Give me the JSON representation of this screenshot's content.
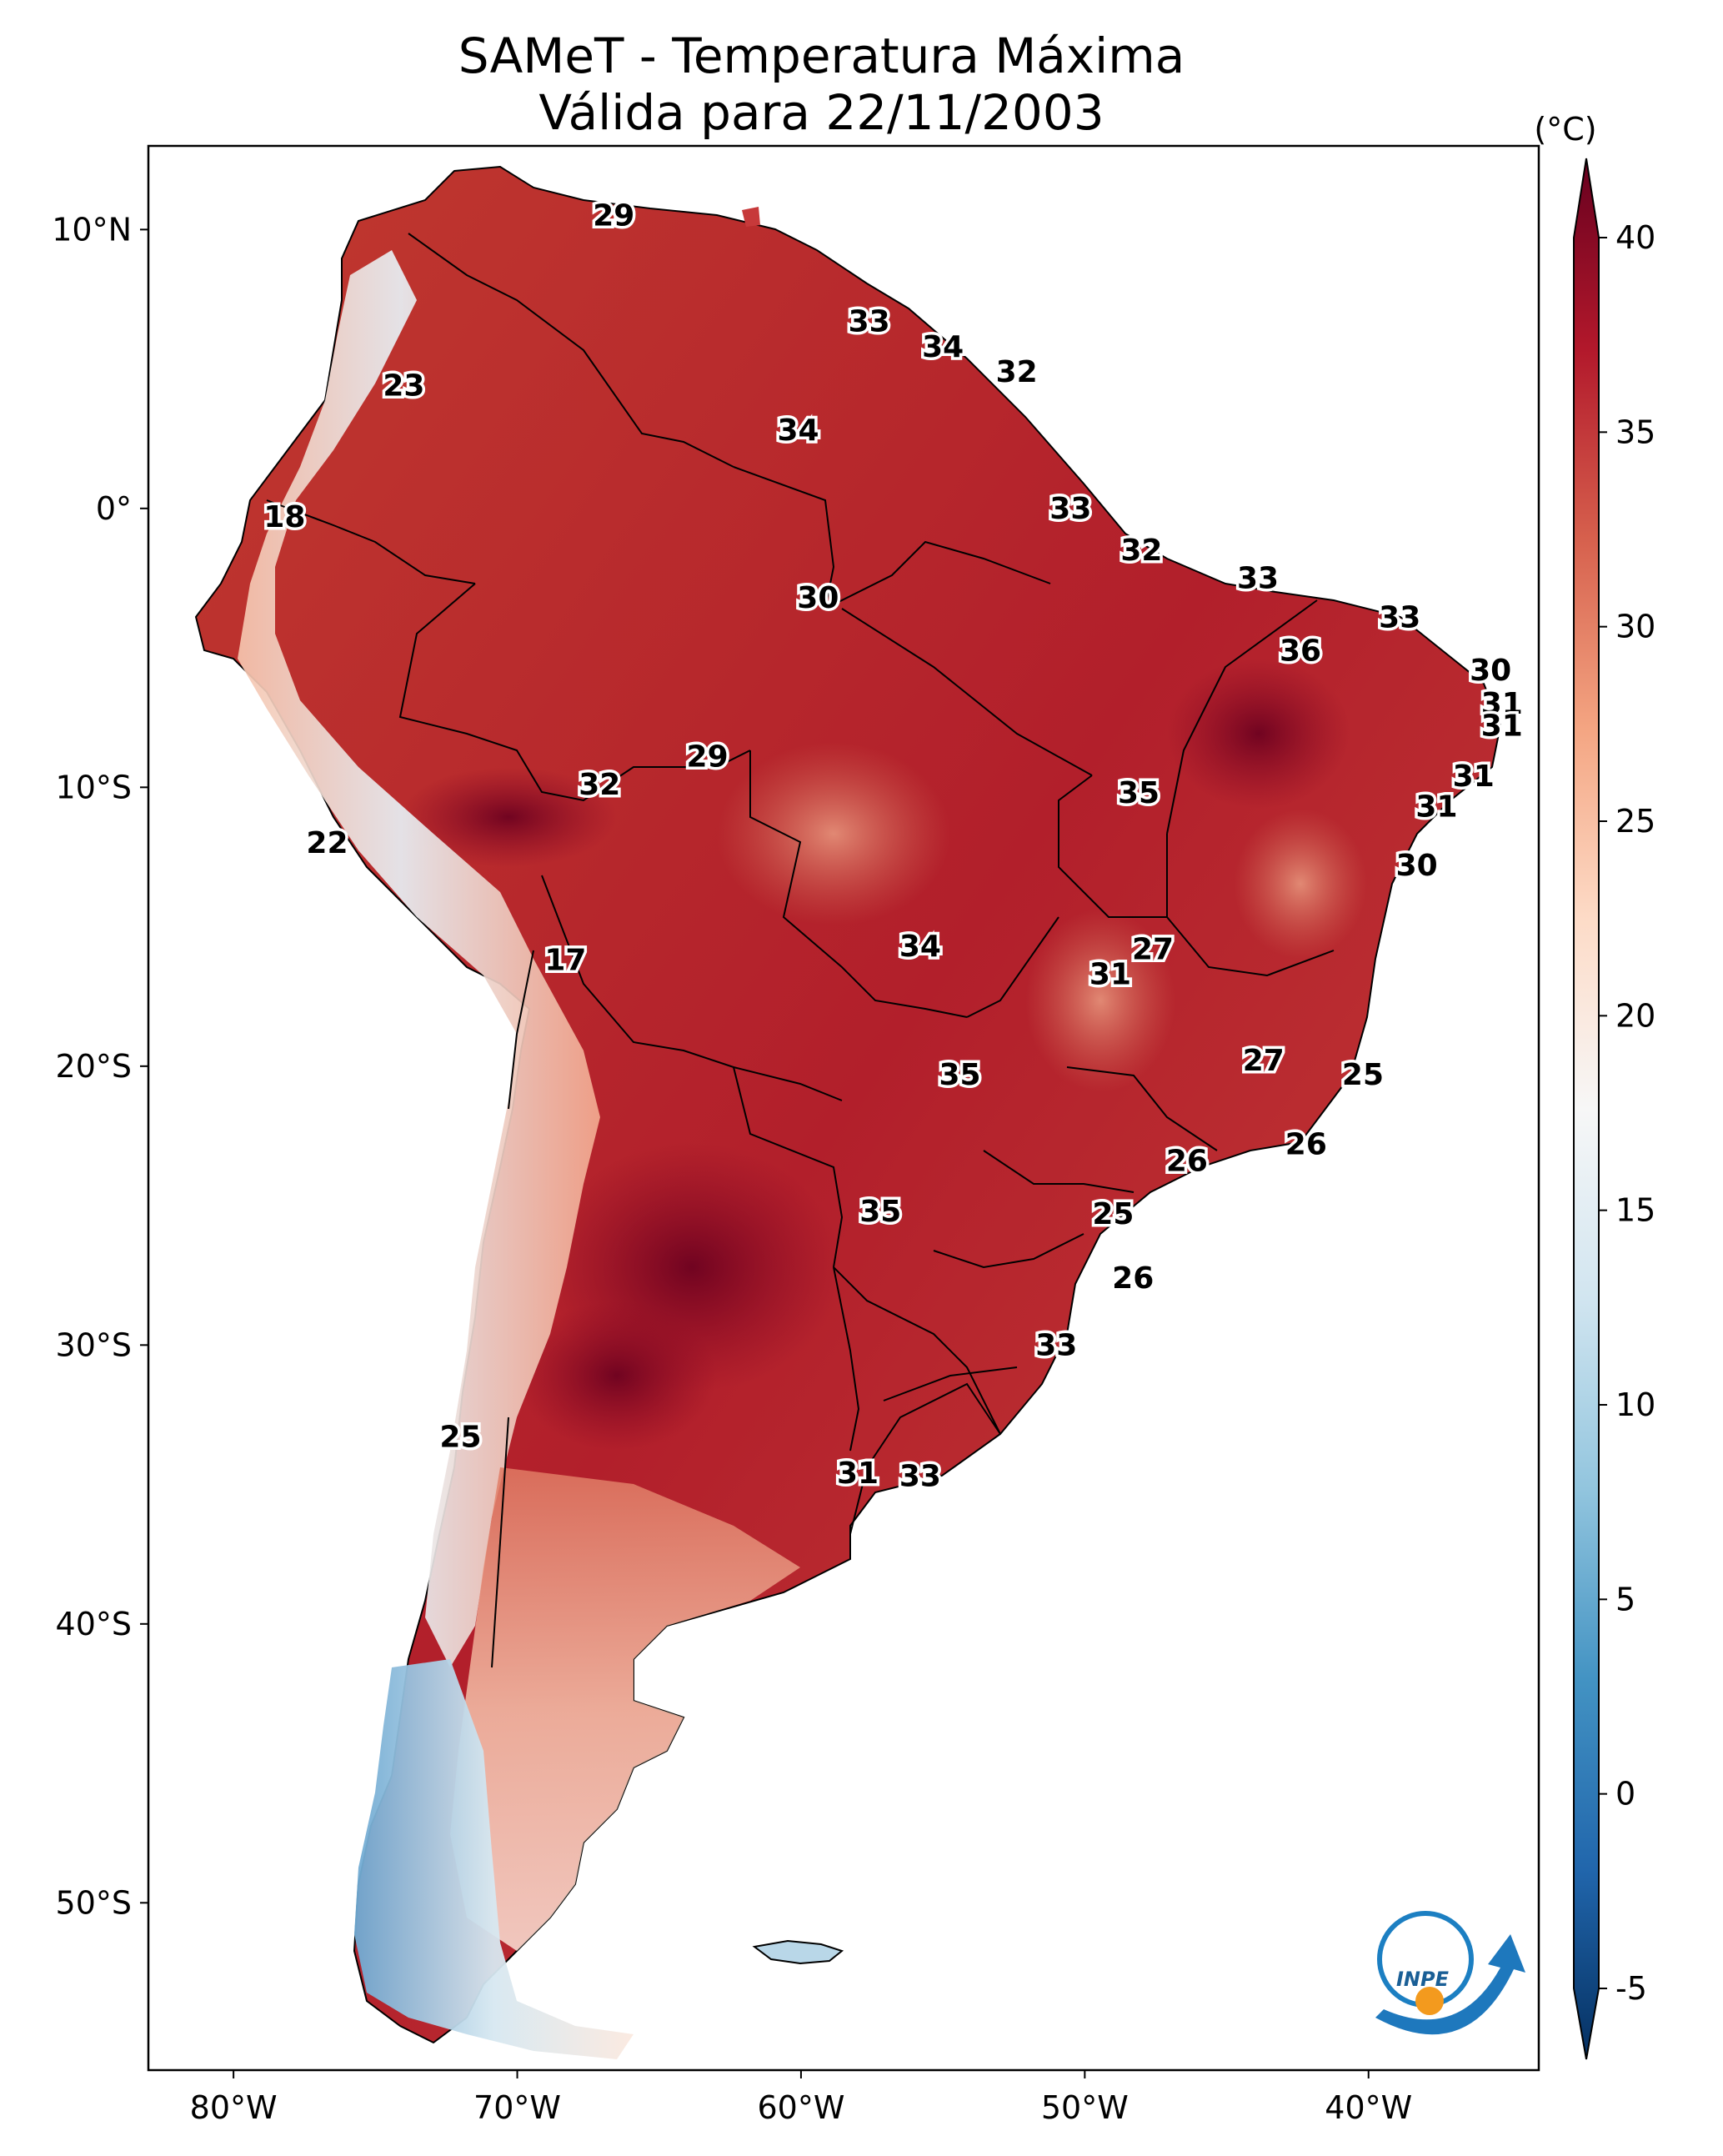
{
  "title": {
    "line1": "SAMeT - Temperatura Máxima",
    "line2": "Válida para 22/11/2003"
  },
  "map": {
    "lon_ticks": [
      "80°W",
      "70°W",
      "60°W",
      "50°W",
      "40°W"
    ],
    "lat_ticks": [
      "10°N",
      "0°",
      "10°S",
      "20°S",
      "30°S",
      "40°S",
      "50°S"
    ],
    "extent": {
      "lon": [
        -83,
        -34
      ],
      "lat": [
        -56,
        13
      ]
    }
  },
  "colorbar": {
    "unit": "(°C)",
    "ticks": [
      "40",
      "35",
      "30",
      "25",
      "20",
      "15",
      "10",
      "5",
      "0",
      "-5"
    ],
    "range": [
      -5,
      40
    ],
    "colors": [
      "#053061",
      "#2166ac",
      "#4393c3",
      "#92c5de",
      "#d1e5f0",
      "#f7f7f7",
      "#fddbc7",
      "#f4a582",
      "#d6604d",
      "#b2182b",
      "#67001f"
    ]
  },
  "contour_labels": [
    {
      "text": "29",
      "lon": -66.6,
      "lat": 10.5
    },
    {
      "text": "33",
      "lon": -57.6,
      "lat": 6.7
    },
    {
      "text": "34",
      "lon": -55.0,
      "lat": 5.8
    },
    {
      "text": "32",
      "lon": -52.4,
      "lat": 4.9
    },
    {
      "text": "23",
      "lon": -74.0,
      "lat": 4.4
    },
    {
      "text": "34",
      "lon": -60.1,
      "lat": 2.8
    },
    {
      "text": "18",
      "lon": -78.2,
      "lat": -0.3
    },
    {
      "text": "33",
      "lon": -50.5,
      "lat": 0.0
    },
    {
      "text": "32",
      "lon": -48.0,
      "lat": -1.5
    },
    {
      "text": "30",
      "lon": -59.4,
      "lat": -3.2
    },
    {
      "text": "33",
      "lon": -43.9,
      "lat": -2.5
    },
    {
      "text": "33",
      "lon": -38.9,
      "lat": -3.9
    },
    {
      "text": "36",
      "lon": -42.4,
      "lat": -5.1
    },
    {
      "text": "30",
      "lon": -35.7,
      "lat": -5.8
    },
    {
      "text": "31",
      "lon": -35.3,
      "lat": -7.0
    },
    {
      "text": "31",
      "lon": -35.3,
      "lat": -7.8
    },
    {
      "text": "29",
      "lon": -63.3,
      "lat": -8.9
    },
    {
      "text": "31",
      "lon": -36.3,
      "lat": -9.6
    },
    {
      "text": "32",
      "lon": -67.1,
      "lat": -9.9
    },
    {
      "text": "35",
      "lon": -48.1,
      "lat": -10.2
    },
    {
      "text": "31",
      "lon": -37.6,
      "lat": -10.7
    },
    {
      "text": "22",
      "lon": -76.7,
      "lat": -12.0
    },
    {
      "text": "30",
      "lon": -38.3,
      "lat": -12.8
    },
    {
      "text": "34",
      "lon": -55.8,
      "lat": -15.7
    },
    {
      "text": "27",
      "lon": -47.6,
      "lat": -15.8
    },
    {
      "text": "17",
      "lon": -68.3,
      "lat": -16.2
    },
    {
      "text": "31",
      "lon": -49.1,
      "lat": -16.7
    },
    {
      "text": "27",
      "lon": -43.7,
      "lat": -19.8
    },
    {
      "text": "35",
      "lon": -54.4,
      "lat": -20.3
    },
    {
      "text": "25",
      "lon": -40.2,
      "lat": -20.3
    },
    {
      "text": "26",
      "lon": -42.2,
      "lat": -22.8
    },
    {
      "text": "26",
      "lon": -46.4,
      "lat": -23.4
    },
    {
      "text": "25",
      "lon": -49.0,
      "lat": -25.3
    },
    {
      "text": "35",
      "lon": -57.2,
      "lat": -25.2
    },
    {
      "text": "26",
      "lon": -48.3,
      "lat": -27.6
    },
    {
      "text": "33",
      "lon": -51.0,
      "lat": -30.0
    },
    {
      "text": "25",
      "lon": -72.0,
      "lat": -33.3
    },
    {
      "text": "31",
      "lon": -58.0,
      "lat": -34.6
    },
    {
      "text": "33",
      "lon": -55.8,
      "lat": -34.7
    }
  ],
  "logo": {
    "text": "INPE"
  }
}
